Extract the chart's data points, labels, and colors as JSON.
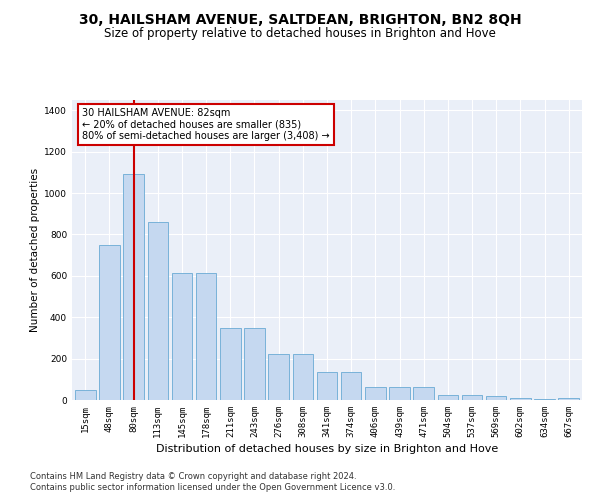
{
  "title": "30, HAILSHAM AVENUE, SALTDEAN, BRIGHTON, BN2 8QH",
  "subtitle": "Size of property relative to detached houses in Brighton and Hove",
  "xlabel": "Distribution of detached houses by size in Brighton and Hove",
  "ylabel": "Number of detached properties",
  "footer1": "Contains HM Land Registry data © Crown copyright and database right 2024.",
  "footer2": "Contains public sector information licensed under the Open Government Licence v3.0.",
  "categories": [
    "15sqm",
    "48sqm",
    "80sqm",
    "113sqm",
    "145sqm",
    "178sqm",
    "211sqm",
    "243sqm",
    "276sqm",
    "308sqm",
    "341sqm",
    "374sqm",
    "406sqm",
    "439sqm",
    "471sqm",
    "504sqm",
    "537sqm",
    "569sqm",
    "602sqm",
    "634sqm",
    "667sqm"
  ],
  "values": [
    47,
    750,
    1090,
    860,
    615,
    615,
    350,
    350,
    220,
    220,
    135,
    135,
    65,
    65,
    65,
    25,
    25,
    20,
    12,
    5,
    10
  ],
  "bar_color": "#c5d8f0",
  "bar_edge_color": "#6aaad4",
  "vline_color": "#cc0000",
  "vline_x_idx": 2,
  "annotation_line1": "30 HAILSHAM AVENUE: 82sqm",
  "annotation_line2": "← 20% of detached houses are smaller (835)",
  "annotation_line3": "80% of semi-detached houses are larger (3,408) →",
  "annotation_box_facecolor": "#ffffff",
  "annotation_box_edgecolor": "#cc0000",
  "ylim": [
    0,
    1450
  ],
  "yticks": [
    0,
    200,
    400,
    600,
    800,
    1000,
    1200,
    1400
  ],
  "background_color": "#eaeff8",
  "grid_color": "#ffffff",
  "title_fontsize": 10,
  "subtitle_fontsize": 8.5,
  "xlabel_fontsize": 8,
  "ylabel_fontsize": 7.5,
  "tick_fontsize": 6.5,
  "footer_fontsize": 6,
  "annotation_fontsize": 7
}
